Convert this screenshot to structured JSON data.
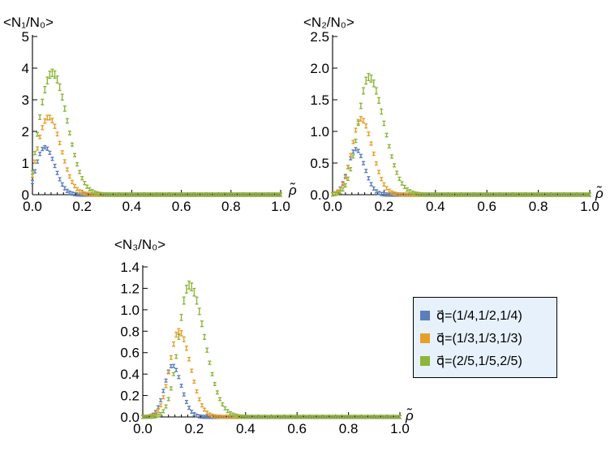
{
  "chart_data": [
    {
      "type": "scatter",
      "ylabel": "<N₁/N₀>",
      "xlabel": "ρ̃",
      "xlim": [
        0,
        1.0
      ],
      "ylim": [
        0,
        5
      ],
      "xticks": [
        "0.0",
        "0.2",
        "0.4",
        "0.6",
        "0.8",
        "1.0"
      ],
      "yticks": [
        "0",
        "1",
        "2",
        "3",
        "4",
        "5"
      ],
      "series": [
        {
          "color": "#5b7fba",
          "peak_x": 0.05,
          "peak_y": 1.5,
          "sigma_left": 0.035,
          "sigma_right": 0.04,
          "y0": 0.4
        },
        {
          "color": "#e5a02a",
          "peak_x": 0.065,
          "peak_y": 2.45,
          "sigma_left": 0.04,
          "sigma_right": 0.05,
          "y0": 0.6
        },
        {
          "color": "#8db53b",
          "peak_x": 0.08,
          "peak_y": 3.85,
          "sigma_left": 0.045,
          "sigma_right": 0.06,
          "y0": 0.7
        }
      ]
    },
    {
      "type": "scatter",
      "ylabel": "<N₂/N₀>",
      "xlabel": "ρ̃",
      "xlim": [
        0,
        1.0
      ],
      "ylim": [
        0,
        2.5
      ],
      "xticks": [
        "0.0",
        "0.2",
        "0.4",
        "0.6",
        "0.8",
        "1.0"
      ],
      "yticks": [
        "0.0",
        "0.5",
        "1.0",
        "1.5",
        "2.0",
        "2.5"
      ],
      "series": [
        {
          "color": "#5b7fba",
          "peak_x": 0.09,
          "peak_y": 0.72,
          "sigma_left": 0.03,
          "sigma_right": 0.035,
          "y0": 0
        },
        {
          "color": "#e5a02a",
          "peak_x": 0.11,
          "peak_y": 1.2,
          "sigma_left": 0.035,
          "sigma_right": 0.045,
          "y0": 0
        },
        {
          "color": "#8db53b",
          "peak_x": 0.14,
          "peak_y": 1.86,
          "sigma_left": 0.04,
          "sigma_right": 0.06,
          "y0": 0
        }
      ]
    },
    {
      "type": "scatter",
      "ylabel": "<N₃/N₀>",
      "xlabel": "ρ̃",
      "xlim": [
        0,
        1.0
      ],
      "ylim": [
        0,
        1.4
      ],
      "xticks": [
        "0.0",
        "0.2",
        "0.4",
        "0.6",
        "0.8",
        "1.0"
      ],
      "yticks": [
        "0.0",
        "0.2",
        "0.4",
        "0.6",
        "0.8",
        "1.0",
        "1.2",
        "1.4"
      ],
      "series": [
        {
          "color": "#5b7fba",
          "peak_x": 0.115,
          "peak_y": 0.48,
          "sigma_left": 0.03,
          "sigma_right": 0.035,
          "y0": 0
        },
        {
          "color": "#e5a02a",
          "peak_x": 0.14,
          "peak_y": 0.8,
          "sigma_left": 0.035,
          "sigma_right": 0.045,
          "y0": 0
        },
        {
          "color": "#8db53b",
          "peak_x": 0.18,
          "peak_y": 1.23,
          "sigma_left": 0.04,
          "sigma_right": 0.06,
          "y0": 0
        }
      ]
    }
  ],
  "legend": {
    "entries": [
      {
        "label": "q⃗=(1/4,1/2,1/4)",
        "color": "#5b7fba"
      },
      {
        "label": "q⃗=(1/3,1/3,1/3)",
        "color": "#e5a02a"
      },
      {
        "label": "q⃗=(2/5,1/5,2/5)",
        "color": "#8db53b"
      }
    ]
  }
}
